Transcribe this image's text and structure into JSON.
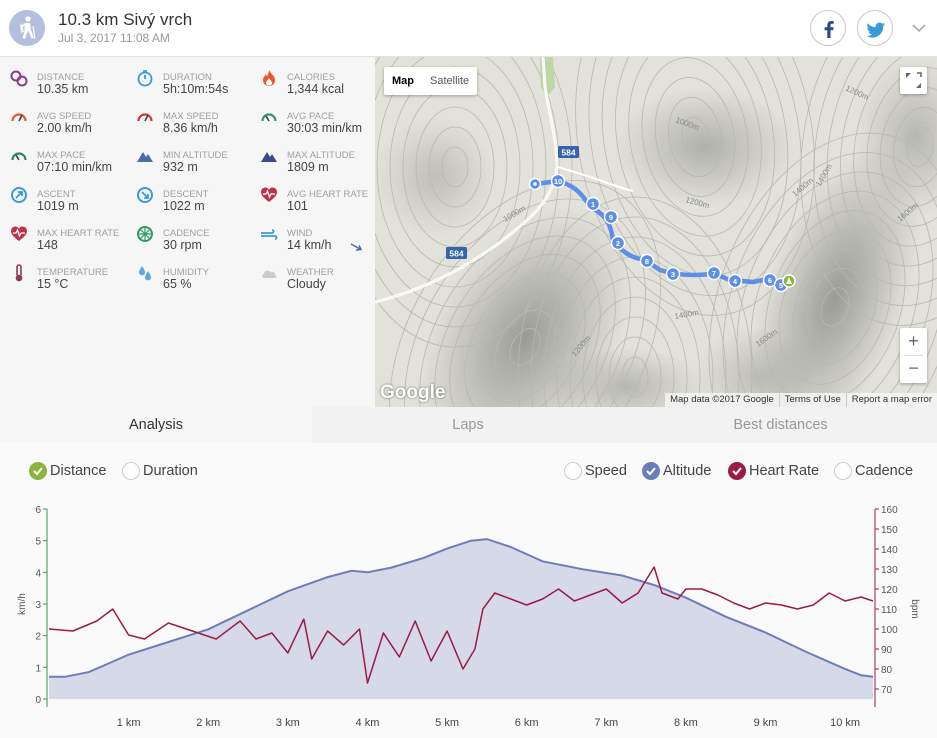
{
  "header": {
    "title": "10.3 km Sivý vrch",
    "date": "Jul 3, 2017 11:08 AM",
    "activity_icon": "hiking-icon",
    "share": [
      "facebook-icon",
      "twitter-icon"
    ]
  },
  "stats": [
    {
      "label": "DISTANCE",
      "value": "10.35 km",
      "icon": "distance-pin-icon",
      "color": "#8e3a8c"
    },
    {
      "label": "DURATION",
      "value": "5h:10m:54s",
      "icon": "stopwatch-icon",
      "color": "#3a9ad9"
    },
    {
      "label": "CALORIES",
      "value": "1,344 kcal",
      "icon": "flame-icon",
      "color": "#e8592a"
    },
    {
      "label": "AVG SPEED",
      "value": "2.00 km/h",
      "icon": "speedometer-icon",
      "color": "#e8592a"
    },
    {
      "label": "MAX SPEED",
      "value": "8.36 km/h",
      "icon": "speedometer-icon",
      "color": "#d9382a"
    },
    {
      "label": "AVG PACE",
      "value": "30:03 min/km",
      "icon": "pace-gauge-icon",
      "color": "#2e9a6a"
    },
    {
      "label": "MAX PACE",
      "value": "07:10 min/km",
      "icon": "pace-gauge-icon",
      "color": "#2e8a6a"
    },
    {
      "label": "MIN ALTITUDE",
      "value": "932 m",
      "icon": "mountain-icon",
      "color": "#4a6aa8"
    },
    {
      "label": "MAX ALTITUDE",
      "value": "1809 m",
      "icon": "mountain-icon",
      "color": "#3a4a8a"
    },
    {
      "label": "ASCENT",
      "value": "1019 m",
      "icon": "ascent-icon",
      "color": "#3a9ad9"
    },
    {
      "label": "DESCENT",
      "value": "1022 m",
      "icon": "descent-icon",
      "color": "#3a9ad9"
    },
    {
      "label": "AVG HEART RATE",
      "value": "101",
      "icon": "heart-rate-icon",
      "color": "#c0304a"
    },
    {
      "label": "MAX HEART RATE",
      "value": "148",
      "icon": "heart-rate-icon",
      "color": "#c0304a"
    },
    {
      "label": "CADENCE",
      "value": "30 rpm",
      "icon": "cadence-wheel-icon",
      "color": "#2e9a6a"
    },
    {
      "label": "WIND",
      "value": "14 km/h",
      "icon": "wind-icon",
      "color": "#3a9ad9"
    },
    {
      "label": "TEMPERATURE",
      "value": "15 °C",
      "icon": "thermometer-icon",
      "color": "#8e3a5a"
    },
    {
      "label": "HUMIDITY",
      "value": "65 %",
      "icon": "humidity-drops-icon",
      "color": "#5aa8e8"
    },
    {
      "label": "WEATHER",
      "value": "Cloudy",
      "icon": "cloud-icon",
      "color": "#cccccc"
    }
  ],
  "map": {
    "type_map": "Map",
    "type_satellite": "Satellite",
    "zoom_in": "+",
    "zoom_out": "−",
    "logo": "Google",
    "attribution": [
      "Map data ©2017 Google",
      "Terms of Use",
      "Report a map error"
    ],
    "road_labels": [
      "584",
      "584"
    ],
    "contour_labels": [
      "1200m",
      "1000m",
      "1400m",
      "1600m",
      "1000m",
      "1200m",
      "1400m",
      "1600m",
      "1400m",
      "1200m"
    ],
    "lap_markers": [
      "10",
      "1",
      "9",
      "2",
      "8",
      "3",
      "7",
      "4",
      "6",
      "5"
    ]
  },
  "tabs": [
    "Analysis",
    "Laps",
    "Best distances"
  ],
  "active_tab": 0,
  "options": {
    "x_axis": [
      {
        "label": "Distance",
        "checked": true
      },
      {
        "label": "Duration",
        "checked": false
      }
    ],
    "series": [
      {
        "label": "Speed",
        "checked": false
      },
      {
        "label": "Altitude",
        "checked": true
      },
      {
        "label": "Heart Rate",
        "checked": true
      },
      {
        "label": "Cadence",
        "checked": false
      }
    ]
  },
  "colors": {
    "distance_check": "#8ab53a",
    "altitude": "#6d7dba",
    "altitude_fill": "#d6d9e8",
    "heart_rate": "#9b1c42",
    "speed_axis": "#2e9a4a"
  },
  "chart_data": {
    "type": "line",
    "x_label": "km",
    "x_ticks": [
      "1 km",
      "2 km",
      "3 km",
      "4 km",
      "5 km",
      "6 km",
      "7 km",
      "8 km",
      "9 km",
      "10 km"
    ],
    "x_range": [
      0,
      10.35
    ],
    "y_left": {
      "label": "km/h",
      "range": [
        0,
        6
      ],
      "ticks": [
        "0",
        "1",
        "2",
        "3",
        "4",
        "5",
        "6"
      ]
    },
    "y_right": {
      "label": "bpm",
      "range": [
        65,
        160
      ],
      "ticks": [
        "70",
        "80",
        "90",
        "100",
        "110",
        "120",
        "130",
        "140",
        "150",
        "160"
      ]
    },
    "series": [
      {
        "name": "Altitude",
        "axis": "left-scale",
        "points": [
          [
            0,
            0.7
          ],
          [
            0.2,
            0.7
          ],
          [
            0.5,
            0.85
          ],
          [
            1.0,
            1.4
          ],
          [
            1.5,
            1.8
          ],
          [
            2.0,
            2.2
          ],
          [
            2.5,
            2.8
          ],
          [
            3.0,
            3.4
          ],
          [
            3.5,
            3.85
          ],
          [
            3.8,
            4.05
          ],
          [
            4.0,
            4.0
          ],
          [
            4.3,
            4.15
          ],
          [
            4.7,
            4.45
          ],
          [
            5.0,
            4.75
          ],
          [
            5.3,
            5.0
          ],
          [
            5.5,
            5.05
          ],
          [
            5.8,
            4.8
          ],
          [
            6.2,
            4.35
          ],
          [
            6.7,
            4.1
          ],
          [
            7.2,
            3.9
          ],
          [
            7.6,
            3.6
          ],
          [
            8.0,
            3.2
          ],
          [
            8.5,
            2.6
          ],
          [
            9.0,
            2.1
          ],
          [
            9.5,
            1.5
          ],
          [
            10.0,
            0.95
          ],
          [
            10.2,
            0.75
          ],
          [
            10.35,
            0.7
          ]
        ]
      },
      {
        "name": "Heart Rate",
        "axis": "right",
        "points": [
          [
            0,
            100
          ],
          [
            0.3,
            99
          ],
          [
            0.6,
            104
          ],
          [
            0.8,
            110
          ],
          [
            1.0,
            97
          ],
          [
            1.2,
            95
          ],
          [
            1.5,
            103
          ],
          [
            1.8,
            99
          ],
          [
            2.1,
            95
          ],
          [
            2.4,
            104
          ],
          [
            2.6,
            95
          ],
          [
            2.8,
            98
          ],
          [
            3.0,
            88
          ],
          [
            3.2,
            105
          ],
          [
            3.3,
            85
          ],
          [
            3.5,
            99
          ],
          [
            3.7,
            92
          ],
          [
            3.9,
            100
          ],
          [
            4.0,
            73
          ],
          [
            4.2,
            98
          ],
          [
            4.4,
            86
          ],
          [
            4.6,
            104
          ],
          [
            4.8,
            84
          ],
          [
            5.0,
            99
          ],
          [
            5.2,
            80
          ],
          [
            5.35,
            90
          ],
          [
            5.45,
            110
          ],
          [
            5.6,
            118
          ],
          [
            5.8,
            115
          ],
          [
            6.0,
            112
          ],
          [
            6.2,
            115
          ],
          [
            6.4,
            120
          ],
          [
            6.6,
            114
          ],
          [
            6.8,
            117
          ],
          [
            7.0,
            120
          ],
          [
            7.2,
            113
          ],
          [
            7.4,
            118
          ],
          [
            7.6,
            131
          ],
          [
            7.7,
            118
          ],
          [
            7.9,
            115
          ],
          [
            8.0,
            120
          ],
          [
            8.2,
            120
          ],
          [
            8.4,
            117
          ],
          [
            8.6,
            113
          ],
          [
            8.8,
            110
          ],
          [
            9.0,
            113
          ],
          [
            9.2,
            112
          ],
          [
            9.4,
            110
          ],
          [
            9.6,
            112
          ],
          [
            9.8,
            118
          ],
          [
            10.0,
            114
          ],
          [
            10.2,
            116
          ],
          [
            10.35,
            114
          ]
        ]
      }
    ]
  }
}
